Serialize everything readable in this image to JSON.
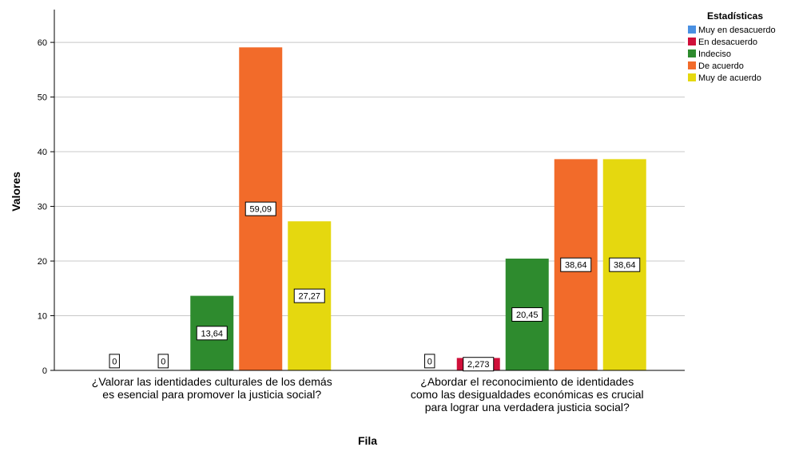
{
  "chart_data": {
    "type": "bar",
    "title": "",
    "xlabel": "Fila",
    "ylabel": "Valores",
    "ylim": [
      0,
      66
    ],
    "yticks": [
      0,
      10,
      20,
      30,
      40,
      50,
      60
    ],
    "grid": true,
    "legend_position": "top-right",
    "legend_title": "Estadísticas",
    "categories": [
      [
        "¿Valorar las identidades culturales de los demás",
        "es esencial para promover la justicia social?"
      ],
      [
        "¿Abordar el reconocimiento de identidades",
        "como las desigualdades económicas es crucial",
        "para lograr una verdadera justicia social?"
      ]
    ],
    "series": [
      {
        "name": "Muy en desacuerdo",
        "color": "#4a90e2",
        "values": [
          0,
          0
        ],
        "labels": [
          "0",
          "0"
        ]
      },
      {
        "name": "En desacuerdo",
        "color": "#d0103a",
        "values": [
          0,
          2.273
        ],
        "labels": [
          "0",
          "2,273"
        ]
      },
      {
        "name": "Indeciso",
        "color": "#2e8b2e",
        "values": [
          13.64,
          20.45
        ],
        "labels": [
          "13,64",
          "20,45"
        ]
      },
      {
        "name": "De acuerdo",
        "color": "#f26b2a",
        "values": [
          59.09,
          38.64
        ],
        "labels": [
          "59,09",
          "38,64"
        ]
      },
      {
        "name": "Muy de acuerdo",
        "color": "#e5d80f",
        "values": [
          27.27,
          38.64
        ],
        "labels": [
          "27,27",
          "38,64"
        ]
      }
    ]
  }
}
